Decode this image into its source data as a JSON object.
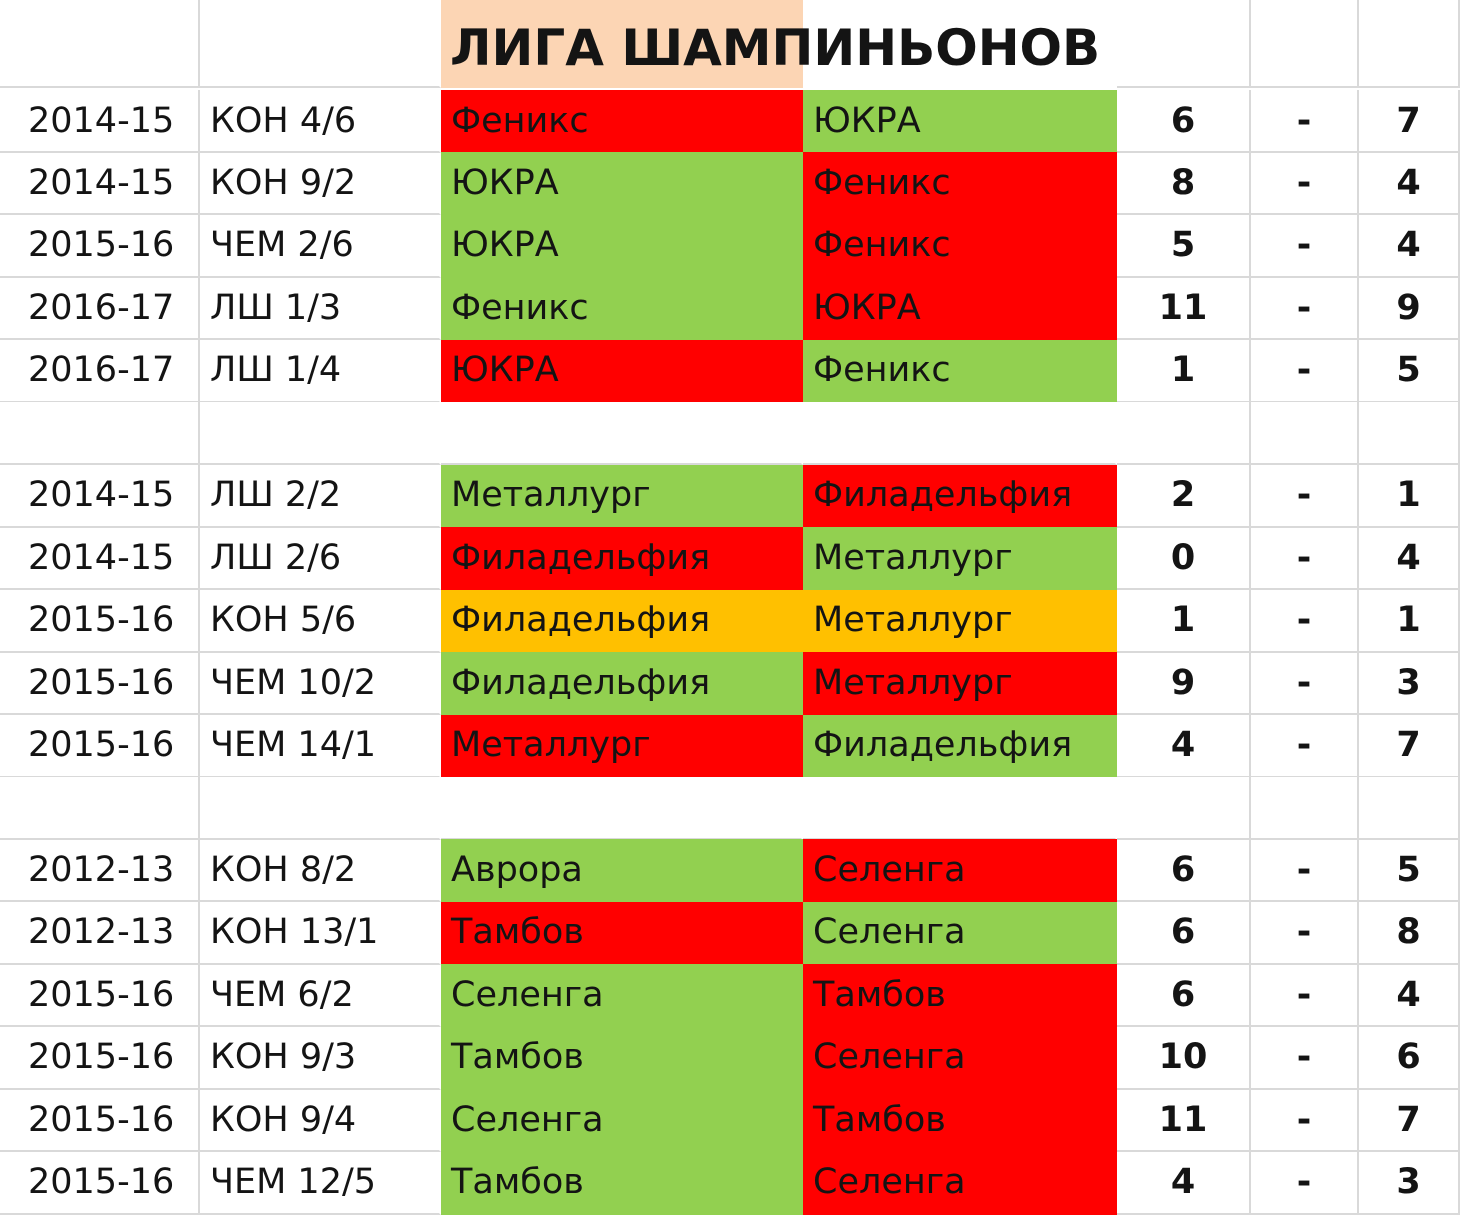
{
  "title": "ЛИГА ШАМПИНЬОНОВ",
  "colors": {
    "win": "#92d050",
    "loss": "#ff0000",
    "draw": "#ffc000",
    "title_bg": "#fcd5b4",
    "grid": "#d9d9d9"
  },
  "groups": [
    {
      "rows": [
        {
          "season": "2014-15",
          "stage": "КОН 4/6",
          "home": "Феникс",
          "away": "ЮКРА",
          "home_score": "6",
          "sep": "-",
          "away_score": "7",
          "home_status": "loss",
          "away_status": "win"
        },
        {
          "season": "2014-15",
          "stage": "КОН 9/2",
          "home": "ЮКРА",
          "away": "Феникс",
          "home_score": "8",
          "sep": "-",
          "away_score": "4",
          "home_status": "win",
          "away_status": "loss"
        },
        {
          "season": "2015-16",
          "stage": "ЧЕМ 2/6",
          "home": "ЮКРА",
          "away": "Феникс",
          "home_score": "5",
          "sep": "-",
          "away_score": "4",
          "home_status": "win",
          "away_status": "loss"
        },
        {
          "season": "2016-17",
          "stage": "ЛШ 1/3",
          "home": "Феникс",
          "away": "ЮКРА",
          "home_score": "11",
          "sep": "-",
          "away_score": "9",
          "home_status": "win",
          "away_status": "loss"
        },
        {
          "season": "2016-17",
          "stage": "ЛШ 1/4",
          "home": "ЮКРА",
          "away": "Феникс",
          "home_score": "1",
          "sep": "-",
          "away_score": "5",
          "home_status": "loss",
          "away_status": "win"
        }
      ]
    },
    {
      "rows": [
        {
          "season": "2014-15",
          "stage": "ЛШ 2/2",
          "home": "Металлург",
          "away": "Филадельфия",
          "home_score": "2",
          "sep": "-",
          "away_score": "1",
          "home_status": "win",
          "away_status": "loss"
        },
        {
          "season": "2014-15",
          "stage": "ЛШ 2/6",
          "home": "Филадельфия",
          "away": "Металлург",
          "home_score": "0",
          "sep": "-",
          "away_score": "4",
          "home_status": "loss",
          "away_status": "win"
        },
        {
          "season": "2015-16",
          "stage": "КОН 5/6",
          "home": "Филадельфия",
          "away": "Металлург",
          "home_score": "1",
          "sep": "-",
          "away_score": "1",
          "home_status": "draw",
          "away_status": "draw"
        },
        {
          "season": "2015-16",
          "stage": "ЧЕМ 10/2",
          "home": "Филадельфия",
          "away": "Металлург",
          "home_score": "9",
          "sep": "-",
          "away_score": "3",
          "home_status": "win",
          "away_status": "loss"
        },
        {
          "season": "2015-16",
          "stage": "ЧЕМ 14/1",
          "home": "Металлург",
          "away": "Филадельфия",
          "home_score": "4",
          "sep": "-",
          "away_score": "7",
          "home_status": "loss",
          "away_status": "win"
        }
      ]
    },
    {
      "rows": [
        {
          "season": "2012-13",
          "stage": "КОН 8/2",
          "home": "Аврора",
          "away": "Селенга",
          "home_score": "6",
          "sep": "-",
          "away_score": "5",
          "home_status": "win",
          "away_status": "loss"
        },
        {
          "season": "2012-13",
          "stage": "КОН 13/1",
          "home": "Тамбов",
          "away": "Селенга",
          "home_score": "6",
          "sep": "-",
          "away_score": "8",
          "home_status": "loss",
          "away_status": "win"
        },
        {
          "season": "2015-16",
          "stage": "ЧЕМ 6/2",
          "home": "Селенга",
          "away": "Тамбов",
          "home_score": "6",
          "sep": "-",
          "away_score": "4",
          "home_status": "win",
          "away_status": "loss"
        },
        {
          "season": "2015-16",
          "stage": "КОН 9/3",
          "home": "Тамбов",
          "away": "Селенга",
          "home_score": "10",
          "sep": "-",
          "away_score": "6",
          "home_status": "win",
          "away_status": "loss"
        },
        {
          "season": "2015-16",
          "stage": "КОН 9/4",
          "home": "Селенга",
          "away": "Тамбов",
          "home_score": "11",
          "sep": "-",
          "away_score": "7",
          "home_status": "win",
          "away_status": "loss"
        },
        {
          "season": "2015-16",
          "stage": "ЧЕМ 12/5",
          "home": "Тамбов",
          "away": "Селенга",
          "home_score": "4",
          "sep": "-",
          "away_score": "3",
          "home_status": "win",
          "away_status": "loss"
        }
      ]
    }
  ]
}
